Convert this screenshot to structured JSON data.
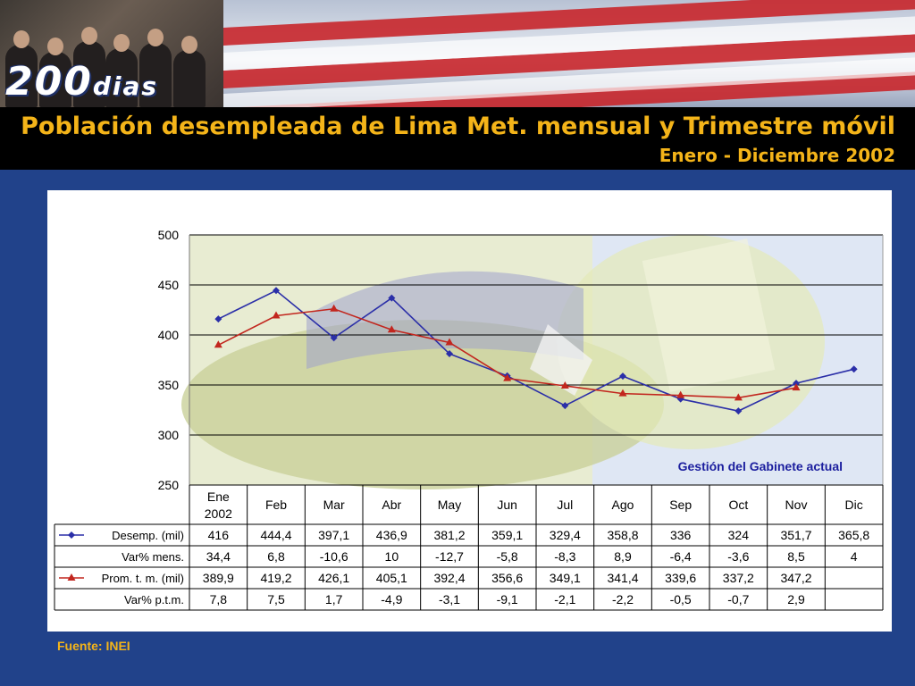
{
  "header": {
    "logo_main": "200",
    "logo_suffix": "dias",
    "title": "Población desempleada de Lima Met. mensual y Trimestre móvil",
    "subtitle": "Enero - Diciembre 2002"
  },
  "footer": {
    "source": "Fuente: INEI"
  },
  "colors": {
    "background": "#21428a",
    "title": "#f4b419",
    "series_desempleo": "#2b2fa8",
    "series_promedio": "#c2261e",
    "annotation": "#1b1e9e"
  },
  "chart_data": {
    "type": "line",
    "yticks": [
      500,
      450,
      400,
      350,
      300,
      250
    ],
    "ylim": [
      250,
      500
    ],
    "grid": true,
    "annotation": "Gestión del Gabinete actual",
    "categories": [
      [
        "Ene",
        "2002"
      ],
      [
        "Feb"
      ],
      [
        "Mar"
      ],
      [
        "Abr"
      ],
      [
        "May"
      ],
      [
        "Jun"
      ],
      [
        "Jul"
      ],
      [
        "Ago"
      ],
      [
        "Sep"
      ],
      [
        "Oct"
      ],
      [
        "Nov"
      ],
      [
        "Dic"
      ]
    ],
    "series": [
      {
        "name": "Desemp. (mil)",
        "color": "#2b2fa8",
        "marker": "diamond",
        "values": [
          416,
          444.4,
          397.1,
          436.9,
          381.2,
          359.1,
          329.4,
          358.8,
          336,
          324,
          351.7,
          365.8
        ]
      },
      {
        "name": "Prom. t. m. (mil)",
        "color": "#c2261e",
        "marker": "triangle",
        "values": [
          389.9,
          419.2,
          426.1,
          405.1,
          392.4,
          356.6,
          349.1,
          341.4,
          339.6,
          337.2,
          347.2,
          null
        ]
      }
    ],
    "table": [
      {
        "label": "Desemp. (mil)",
        "legend": "series-0",
        "cells": [
          "416",
          "444,4",
          "397,1",
          "436,9",
          "381,2",
          "359,1",
          "329,4",
          "358,8",
          "336",
          "324",
          "351,7",
          "365,8"
        ]
      },
      {
        "label": "Var% mens.",
        "legend": null,
        "cells": [
          "34,4",
          "6,8",
          "-10,6",
          "10",
          "-12,7",
          "-5,8",
          "-8,3",
          "8,9",
          "-6,4",
          "-3,6",
          "8,5",
          "4"
        ]
      },
      {
        "label": "Prom. t. m. (mil)",
        "legend": "series-1",
        "cells": [
          "389,9",
          "419,2",
          "426,1",
          "405,1",
          "392,4",
          "356,6",
          "349,1",
          "341,4",
          "339,6",
          "337,2",
          "347,2",
          ""
        ]
      },
      {
        "label": "Var% p.t.m.",
        "legend": null,
        "cells": [
          "7,8",
          "7,5",
          "1,7",
          "-4,9",
          "-3,1",
          "-9,1",
          "-2,1",
          "-2,2",
          "-0,5",
          "-0,7",
          "2,9",
          ""
        ]
      }
    ]
  }
}
